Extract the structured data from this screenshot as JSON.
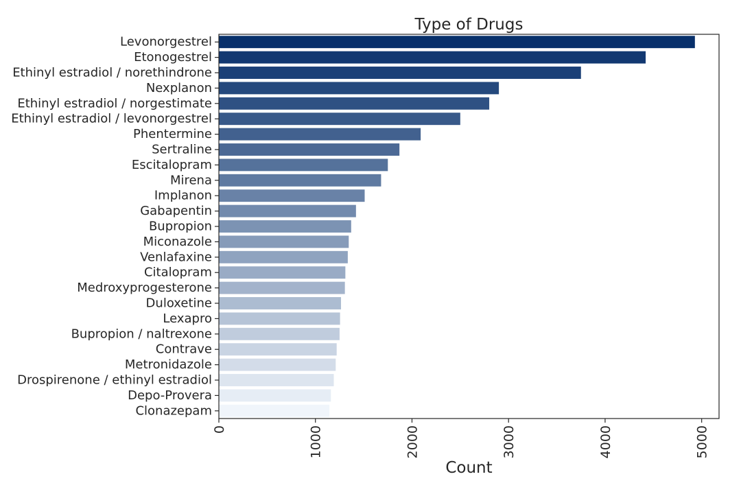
{
  "chart_data": {
    "type": "bar",
    "orientation": "horizontal",
    "title": "Type of Drugs",
    "xlabel": "Count",
    "ylabel": "",
    "xlim": [
      0,
      5180
    ],
    "xticks": [
      0,
      1000,
      2000,
      3000,
      4000,
      5000
    ],
    "grid": false,
    "palette": "Blues_r",
    "colors": {
      "darkest": "#08306b",
      "lightest": "#f0f5fb"
    },
    "categories": [
      "Levonorgestrel",
      "Etonogestrel",
      "Ethinyl estradiol / norethindrone",
      "Nexplanon",
      "Ethinyl estradiol / norgestimate",
      "Ethinyl estradiol / levonorgestrel",
      "Phentermine",
      "Sertraline",
      "Escitalopram",
      "Mirena",
      "Implanon",
      "Gabapentin",
      "Bupropion",
      "Miconazole",
      "Venlafaxine",
      "Citalopram",
      "Medroxyprogesterone",
      "Duloxetine",
      "Lexapro",
      "Bupropion / naltrexone",
      "Contrave",
      "Metronidazole",
      "Drospirenone / ethinyl estradiol",
      "Depo-Provera",
      "Clonazepam"
    ],
    "values": [
      4930,
      4420,
      3750,
      2900,
      2800,
      2500,
      2090,
      1870,
      1750,
      1680,
      1510,
      1420,
      1370,
      1345,
      1335,
      1310,
      1305,
      1265,
      1255,
      1250,
      1220,
      1210,
      1190,
      1160,
      1145
    ]
  }
}
